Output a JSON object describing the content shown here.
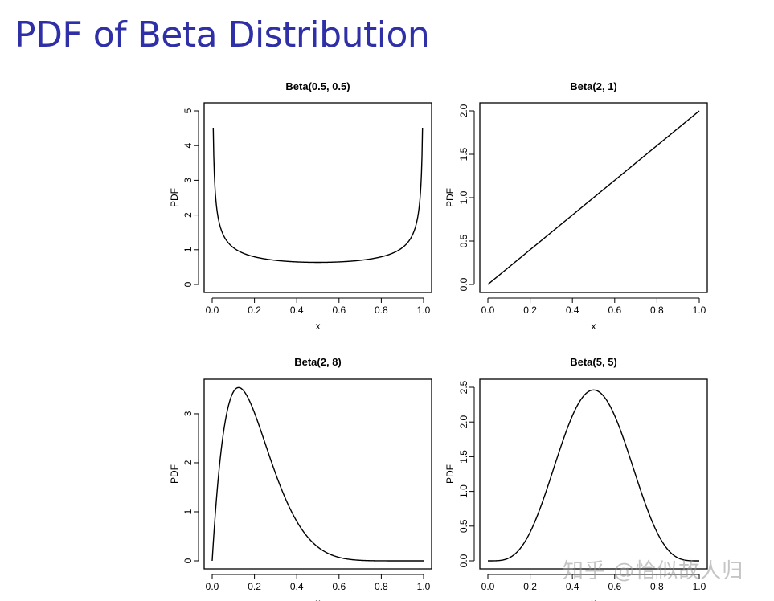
{
  "slide": {
    "title": "PDF of Beta Distribution",
    "watermark": "知乎 @恰似故人归"
  },
  "colors": {
    "title": "#2f2fa8",
    "line": "#000000",
    "watermark": "#969696"
  },
  "chart_data": [
    {
      "type": "line",
      "title": "Beta(0.5, 0.5)",
      "xlabel": "x",
      "ylabel": "PDF",
      "alpha": 0.5,
      "beta": 0.5,
      "x_domain": [
        0.005,
        0.995
      ],
      "xlim": [
        0.0,
        1.0
      ],
      "ylim": [
        0,
        5
      ],
      "xticks": [
        "0.0",
        "0.2",
        "0.4",
        "0.6",
        "0.8",
        "1.0"
      ],
      "yticks": [
        "0",
        "1",
        "2",
        "3",
        "4",
        "5"
      ]
    },
    {
      "type": "line",
      "title": "Beta(2, 1)",
      "xlabel": "x",
      "ylabel": "PDF",
      "alpha": 2,
      "beta": 1,
      "x_domain": [
        0.0,
        1.0
      ],
      "xlim": [
        0.0,
        1.0
      ],
      "ylim": [
        0.0,
        2.0
      ],
      "xticks": [
        "0.0",
        "0.2",
        "0.4",
        "0.6",
        "0.8",
        "1.0"
      ],
      "yticks": [
        "0.0",
        "0.5",
        "1.0",
        "1.5",
        "2.0"
      ]
    },
    {
      "type": "line",
      "title": "Beta(2, 8)",
      "xlabel": "x",
      "ylabel": "PDF",
      "alpha": 2,
      "beta": 8,
      "x_domain": [
        0.0,
        1.0
      ],
      "xlim": [
        0.0,
        1.0
      ],
      "ylim": [
        0,
        3.54
      ],
      "xticks": [
        "0.0",
        "0.2",
        "0.4",
        "0.6",
        "0.8",
        "1.0"
      ],
      "yticks": [
        "0",
        "1",
        "2",
        "3"
      ]
    },
    {
      "type": "line",
      "title": "Beta(5, 5)",
      "xlabel": "x",
      "ylabel": "PDF",
      "alpha": 5,
      "beta": 5,
      "x_domain": [
        0.0,
        1.0
      ],
      "xlim": [
        0.0,
        1.0
      ],
      "ylim": [
        0.0,
        2.5
      ],
      "xticks": [
        "0.0",
        "0.2",
        "0.4",
        "0.6",
        "0.8",
        "1.0"
      ],
      "yticks": [
        "0.0",
        "0.5",
        "1.0",
        "1.5",
        "2.0",
        "2.5"
      ]
    }
  ]
}
